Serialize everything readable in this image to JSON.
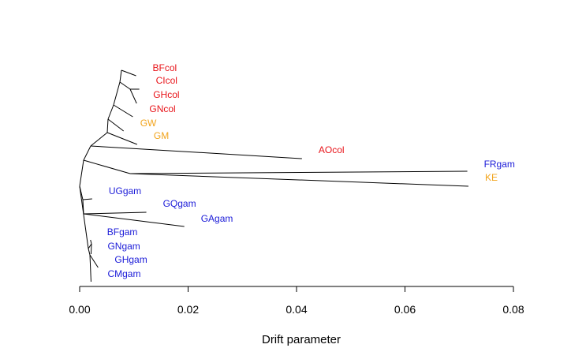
{
  "chart_data": {
    "type": "tree",
    "xlabel": "Drift parameter",
    "xlim": [
      0,
      0.08
    ],
    "ticks": [
      "0.00",
      "0.02",
      "0.04",
      "0.06",
      "0.08"
    ],
    "colors": {
      "col": "#e8141a",
      "gam": "#1b1bd8",
      "mixed": "#f2a41c"
    },
    "tips": [
      {
        "label": "BFcol",
        "group": "col",
        "drift": 0.0104
      },
      {
        "label": "CIcol",
        "group": "col",
        "drift": 0.011
      },
      {
        "label": "GHcol",
        "group": "col",
        "drift": 0.0105
      },
      {
        "label": "GNcol",
        "group": "col",
        "drift": 0.0098
      },
      {
        "label": "GW",
        "group": "mixed",
        "drift": 0.0081
      },
      {
        "label": "GM",
        "group": "mixed",
        "drift": 0.0106
      },
      {
        "label": "AOcol",
        "group": "col",
        "drift": 0.041
      },
      {
        "label": "FRgam",
        "group": "gam",
        "drift": 0.0715
      },
      {
        "label": "KE",
        "group": "mixed",
        "drift": 0.0717
      },
      {
        "label": "UGgam",
        "group": "gam",
        "drift": 0.0023
      },
      {
        "label": "GQgam",
        "group": "gam",
        "drift": 0.0123
      },
      {
        "label": "GAgam",
        "group": "gam",
        "drift": 0.0193
      },
      {
        "label": "BFgam",
        "group": "gam",
        "drift": 0.002
      },
      {
        "label": "GNgam",
        "group": "gam",
        "drift": 0.0021
      },
      {
        "label": "GHgam",
        "group": "gam",
        "drift": 0.0034
      },
      {
        "label": "CMgam",
        "group": "gam",
        "drift": 0.0021
      }
    ]
  }
}
